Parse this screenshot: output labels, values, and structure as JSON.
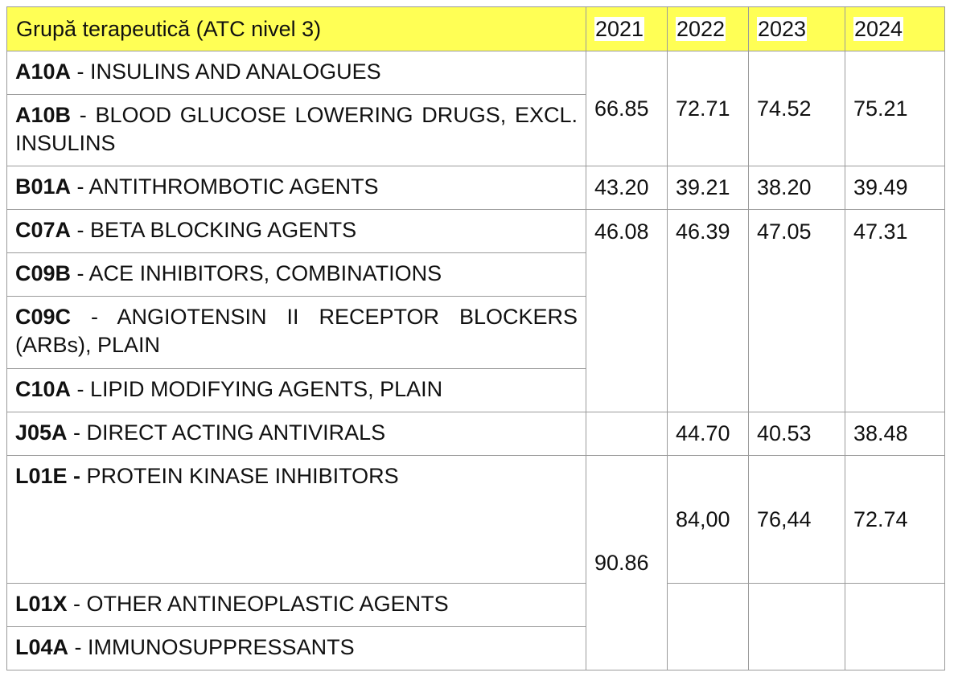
{
  "table": {
    "header": {
      "group": "Grupă terapeutică (ATC nivel 3)",
      "years": [
        "2021",
        "2022",
        "2023",
        "2024"
      ]
    },
    "groups": [
      {
        "code": "A10A",
        "sep": " - ",
        "name": "INSULINS AND ANALOGUES"
      },
      {
        "code": "A10B",
        "sep": " - ",
        "name": "BLOOD GLUCOSE LOWERING DRUGS, EXCL. INSULINS"
      },
      {
        "code": "B01A",
        "sep": " - ",
        "name": "ANTITHROMBOTIC AGENTS"
      },
      {
        "code": "C07A",
        "sep": " - ",
        "name": "BETA BLOCKING AGENTS"
      },
      {
        "code": "C09B",
        "sep": " - ",
        "name": "ACE INHIBITORS, COMBINATIONS"
      },
      {
        "code": "C09C",
        "sep": " - ",
        "name": "ANGIOTENSIN II RECEPTOR BLOCKERS (ARBs), PLAIN"
      },
      {
        "code": "C10A",
        "sep": " - ",
        "name": "LIPID MODIFYING AGENTS, PLAIN"
      },
      {
        "code": "J05A",
        "sep": " - ",
        "name": "DIRECT ACTING ANTIVIRALS"
      },
      {
        "code": "L01E -",
        "sep": " ",
        "name": "PROTEIN KINASE INHIBITORS"
      },
      {
        "code": "L01X",
        "sep": " - ",
        "name": "OTHER ANTINEOPLASTIC AGENTS"
      },
      {
        "code": "L04A",
        "sep": " - ",
        "name": "IMMUNOSUPPRESSANTS"
      }
    ],
    "values": {
      "a10": [
        "66.85",
        "72.71",
        "74.52",
        "75.21"
      ],
      "b01a": [
        "43.20",
        "39.21",
        "38.20",
        "39.49"
      ],
      "c_group": [
        "46.08",
        "46.39",
        "47.05",
        "47.31"
      ],
      "j05a": [
        "",
        "44.70",
        "40.53",
        "38.48"
      ],
      "l_group": [
        "90.86",
        "84,00",
        "76,44",
        "72.74"
      ]
    }
  }
}
